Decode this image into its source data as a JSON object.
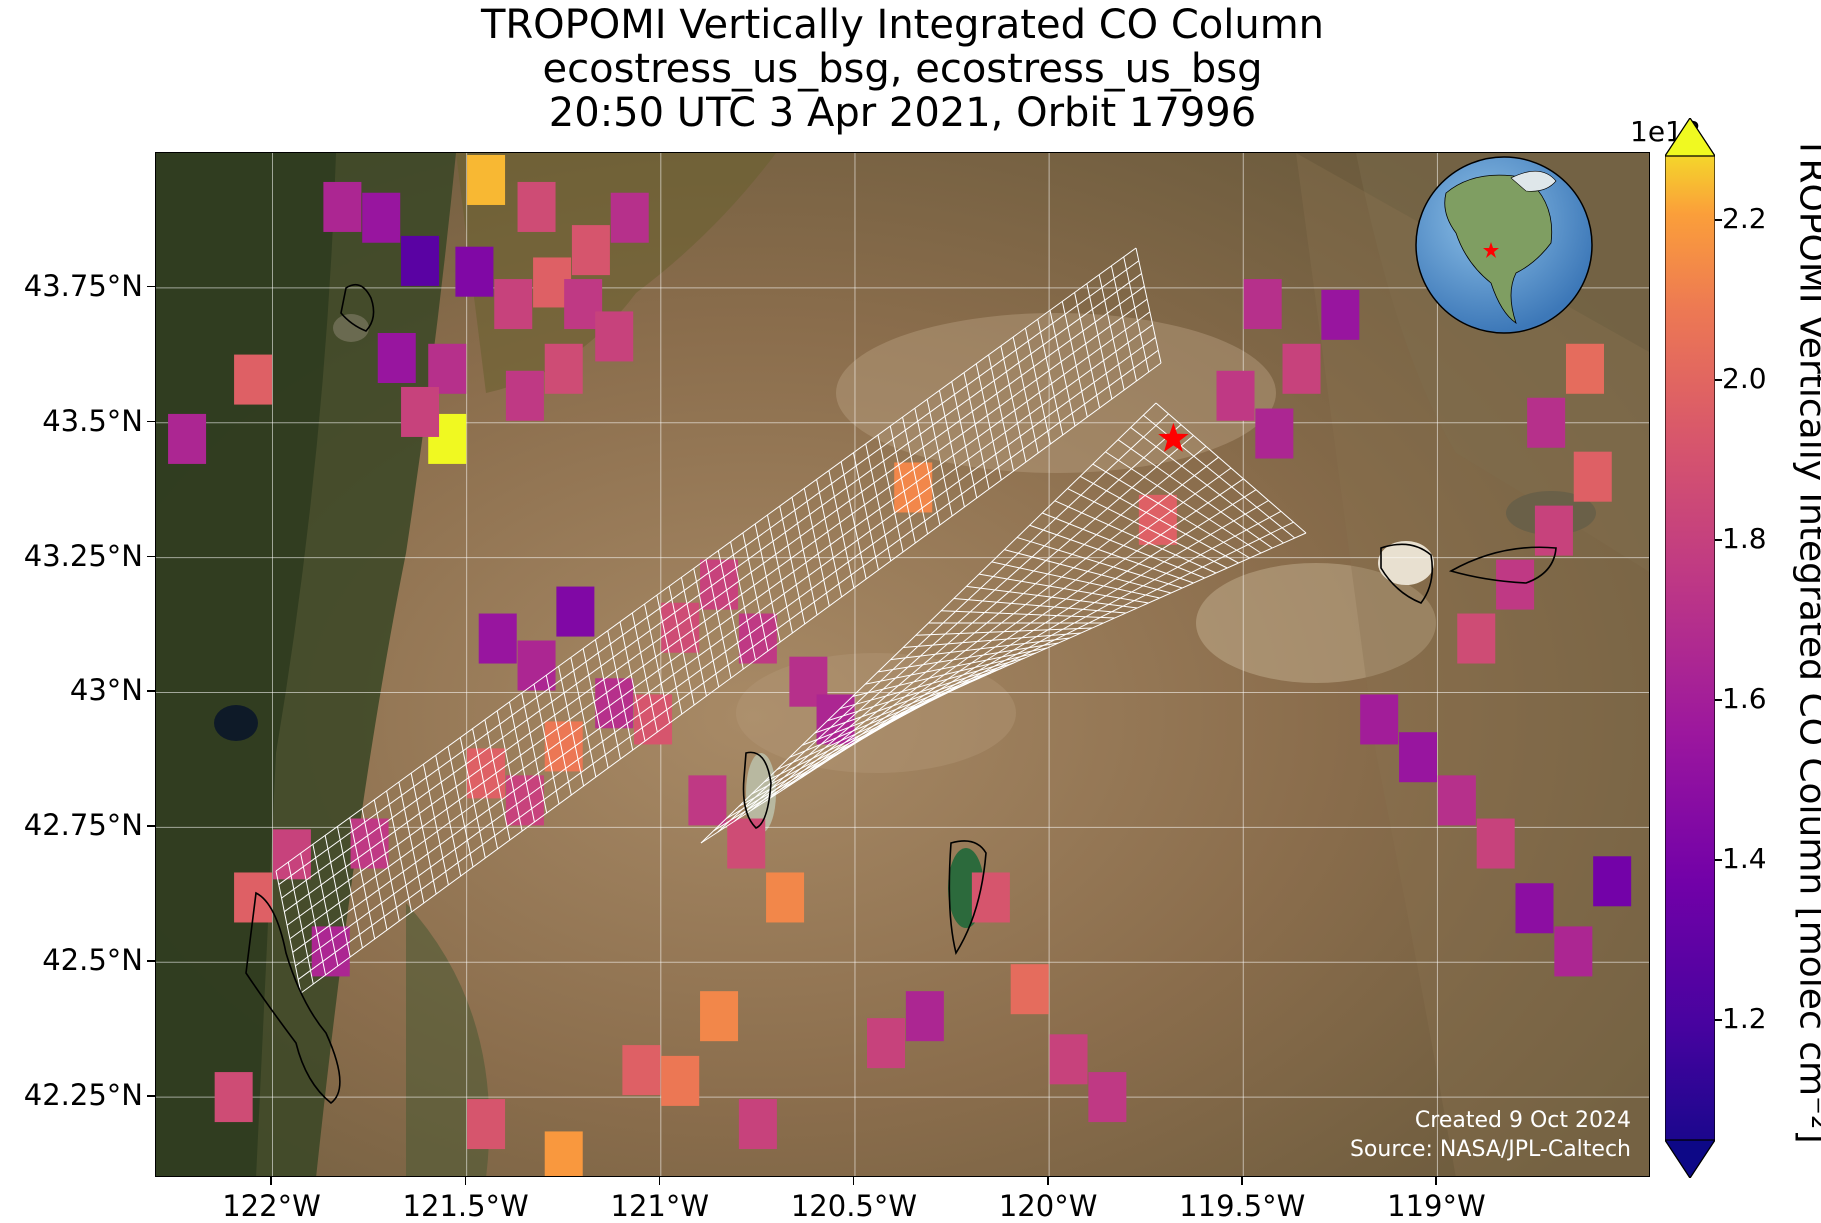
{
  "title": {
    "line1": "TROPOMI Vertically Integrated CO Column",
    "line2": "ecostress_us_bsg, ecostress_us_bsg",
    "line3": "20:50 UTC 3 Apr 2021, Orbit 17996"
  },
  "map": {
    "lon_range": [
      -122.3,
      -118.45
    ],
    "lat_range": [
      42.1,
      44.0
    ],
    "x_ticks": [
      "122°W",
      "121.5°W",
      "121°W",
      "120.5°W",
      "120°W",
      "119.5°W",
      "119°W"
    ],
    "x_tick_values": [
      -122.0,
      -121.5,
      -121.0,
      -120.5,
      -120.0,
      -119.5,
      -119.0
    ],
    "y_ticks": [
      "43.75°N",
      "43.5°N",
      "43.25°N",
      "43°N",
      "42.75°N",
      "42.5°N",
      "42.25°N"
    ],
    "y_tick_values": [
      43.75,
      43.5,
      43.25,
      43.0,
      42.75,
      42.5,
      42.25
    ],
    "site_marker": {
      "lon": -119.68,
      "lat": 43.47,
      "color": "#ff0000",
      "shape": "star"
    },
    "background": "satellite imagery",
    "grid": true
  },
  "credit": {
    "line1": "Created 9 Oct 2024",
    "line2": "Source: NASA/JPL-Caltech"
  },
  "inset": {
    "type": "globe",
    "marker_color": "#ff0000"
  },
  "colorbar": {
    "label": "TROPOMI Vertically Integrated CO Column [molec cm⁻²]",
    "exponent": "1e18",
    "min": 1.05,
    "max": 2.28,
    "ticks": [
      "2.2",
      "2.0",
      "1.8",
      "1.6",
      "1.4",
      "1.2"
    ],
    "tick_values": [
      2.2,
      2.0,
      1.8,
      1.6,
      1.4,
      1.2
    ],
    "colormap": "plasma",
    "extend": "both"
  },
  "chart_data": {
    "type": "heatmap",
    "units": "1e18 molec cm-2",
    "cells": [
      [
        -121.82,
        43.9,
        1.65
      ],
      [
        -121.72,
        43.88,
        1.55
      ],
      [
        -121.62,
        43.8,
        1.3
      ],
      [
        -121.48,
        43.78,
        1.45
      ],
      [
        -121.38,
        43.72,
        1.8
      ],
      [
        -121.28,
        43.76,
        1.95
      ],
      [
        -121.18,
        43.82,
        1.9
      ],
      [
        -121.08,
        43.88,
        1.7
      ],
      [
        -121.45,
        43.95,
        2.2
      ],
      [
        -121.32,
        43.9,
        1.85
      ],
      [
        -121.2,
        43.72,
        1.75
      ],
      [
        -121.12,
        43.66,
        1.8
      ],
      [
        -121.68,
        43.62,
        1.55
      ],
      [
        -121.55,
        43.6,
        1.7
      ],
      [
        -122.05,
        43.58,
        1.95
      ],
      [
        -121.35,
        43.55,
        1.75
      ],
      [
        -121.25,
        43.6,
        1.85
      ],
      [
        -121.55,
        43.47,
        2.28
      ],
      [
        -121.62,
        43.52,
        1.8
      ],
      [
        -122.22,
        43.47,
        1.65
      ],
      [
        -121.02,
        42.95,
        1.9
      ],
      [
        -121.12,
        42.98,
        1.7
      ],
      [
        -121.25,
        42.9,
        2.05
      ],
      [
        -121.35,
        42.8,
        1.8
      ],
      [
        -121.45,
        42.85,
        1.95
      ],
      [
        -121.32,
        43.05,
        1.65
      ],
      [
        -121.42,
        43.1,
        1.55
      ],
      [
        -121.22,
        43.15,
        1.45
      ],
      [
        -120.95,
        43.12,
        1.85
      ],
      [
        -120.85,
        43.2,
        1.8
      ],
      [
        -120.75,
        43.1,
        1.75
      ],
      [
        -120.62,
        43.02,
        1.7
      ],
      [
        -120.55,
        42.95,
        1.65
      ],
      [
        -120.88,
        42.8,
        1.75
      ],
      [
        -120.78,
        42.72,
        1.85
      ],
      [
        -120.68,
        42.62,
        2.1
      ],
      [
        -120.35,
        43.38,
        2.1
      ],
      [
        -119.72,
        43.32,
        1.95
      ],
      [
        -119.52,
        43.55,
        1.75
      ],
      [
        -119.42,
        43.48,
        1.65
      ],
      [
        -119.35,
        43.6,
        1.8
      ],
      [
        -119.25,
        43.7,
        1.55
      ],
      [
        -119.45,
        43.72,
        1.7
      ],
      [
        -119.15,
        42.95,
        1.6
      ],
      [
        -119.05,
        42.88,
        1.55
      ],
      [
        -118.95,
        42.8,
        1.7
      ],
      [
        -118.85,
        42.72,
        1.8
      ],
      [
        -118.75,
        42.6,
        1.5
      ],
      [
        -118.65,
        42.52,
        1.65
      ],
      [
        -118.55,
        42.65,
        1.4
      ],
      [
        -118.6,
        43.4,
        1.95
      ],
      [
        -118.7,
        43.3,
        1.8
      ],
      [
        -118.8,
        43.2,
        1.75
      ],
      [
        -118.9,
        43.1,
        1.85
      ],
      [
        -118.72,
        43.5,
        1.7
      ],
      [
        -118.62,
        43.6,
        2.0
      ],
      [
        -120.15,
        42.62,
        1.9
      ],
      [
        -120.05,
        42.45,
        2.0
      ],
      [
        -119.95,
        42.32,
        1.8
      ],
      [
        -119.85,
        42.25,
        1.75
      ],
      [
        -120.32,
        42.4,
        1.65
      ],
      [
        -120.42,
        42.35,
        1.8
      ],
      [
        -120.85,
        42.4,
        2.1
      ],
      [
        -120.95,
        42.28,
        2.05
      ],
      [
        -121.05,
        42.3,
        1.95
      ],
      [
        -120.75,
        42.2,
        1.8
      ],
      [
        -121.25,
        42.14,
        2.15
      ],
      [
        -121.45,
        42.2,
        1.9
      ],
      [
        -122.05,
        42.62,
        1.95
      ],
      [
        -121.95,
        42.7,
        1.8
      ],
      [
        -121.85,
        42.52,
        1.65
      ],
      [
        -121.75,
        42.72,
        1.75
      ],
      [
        -122.1,
        42.25,
        1.85
      ]
    ],
    "swath_footprints": "white outlined pixel grid",
    "xlabel": "",
    "ylabel": ""
  }
}
